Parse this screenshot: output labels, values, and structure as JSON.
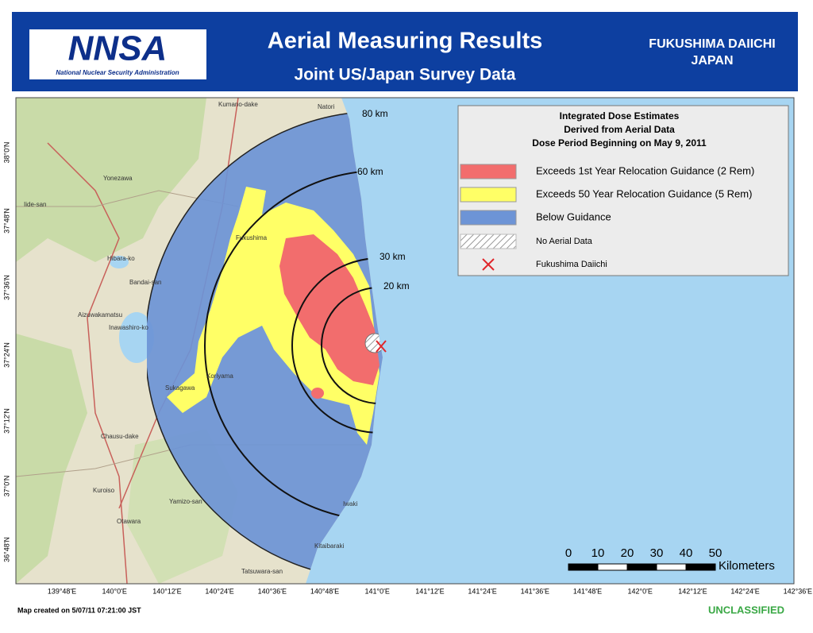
{
  "header": {
    "logo_text": "NNSA",
    "logo_subtitle": "National Nuclear Security Administration",
    "title": "Aerial Measuring Results",
    "subtitle": "Joint US/Japan Survey Data",
    "location": [
      "FUKUSHIMA DAIICHI",
      "JAPAN"
    ]
  },
  "legend": {
    "title": [
      "Integrated Dose Estimates",
      "Derived from Aerial Data",
      "Dose Period Beginning on May 9, 2011"
    ],
    "items": [
      {
        "label": "Exceeds 1st Year Relocation Guidance (2 Rem)",
        "color": "#f26d6d"
      },
      {
        "label": "Exceeds 50 Year Relocation Guidance (5 Rem)",
        "color": "#ffff66"
      },
      {
        "label": "Below Guidance",
        "color": "#6d94d6"
      },
      {
        "label": "No Aerial Data",
        "color": "#ffffff"
      },
      {
        "label": "Fukushima Daiichi",
        "color": "#e0262b"
      }
    ]
  },
  "rings": [
    "80 km",
    "60 km",
    "30 km",
    "20 km"
  ],
  "scale": {
    "ticks": [
      "0",
      "10",
      "20",
      "30",
      "40",
      "50"
    ],
    "unit": "Kilometers"
  },
  "longitudes": [
    "139°48'E",
    "140°0'E",
    "140°12'E",
    "140°24'E",
    "140°36'E",
    "140°48'E",
    "141°0'E",
    "141°12'E",
    "141°24'E",
    "141°36'E",
    "141°48'E",
    "142°0'E",
    "142°12'E",
    "142°24'E",
    "142°36'E"
  ],
  "latitudes": [
    "38°0'N",
    "37°48'N",
    "37°36'N",
    "37°24'N",
    "37°12'N",
    "37°0'N",
    "36°48'N"
  ],
  "places": [
    "Kumano-dake",
    "Natori",
    "Yonezawa",
    "Iide-san",
    "Hibara-ko",
    "Bandai-san",
    "Aizuwakamatsu",
    "Inawashiro-ko",
    "Fukushima",
    "Koriyama",
    "Sukagawa",
    "Chausu-dake",
    "Kuroiso",
    "Yamizo-san",
    "Otawara",
    "Iwaki",
    "Kitaibaraki",
    "Tatsuwara-san"
  ],
  "footer": {
    "note": "Map created on 5/07/11 07:21:00 JST",
    "classification": "UNCLASSIFIED"
  }
}
